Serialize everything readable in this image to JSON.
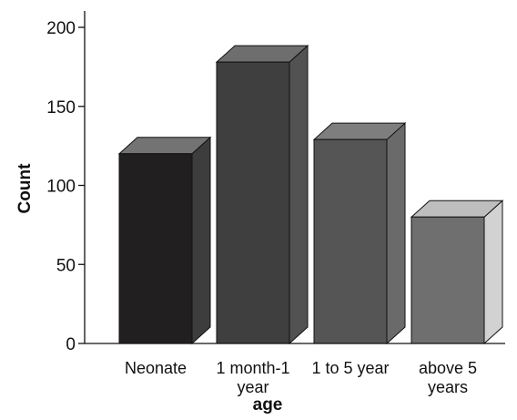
{
  "chart_data": {
    "type": "bar",
    "style": "3d",
    "xlabel": "age",
    "ylabel": "Count",
    "ylim": [
      0,
      200
    ],
    "yticks": [
      0,
      50,
      100,
      150,
      200
    ],
    "grid": false,
    "categories": [
      [
        "Neonate"
      ],
      [
        "1 month-1",
        "year"
      ],
      [
        "1 to 5 year"
      ],
      [
        "above 5",
        "years"
      ]
    ],
    "values": [
      120,
      178,
      129,
      80
    ],
    "colors": [
      {
        "front": "#221f20",
        "top": "#737373",
        "side": "#3d3d3d"
      },
      {
        "front": "#3f3f3f",
        "top": "#6e6e6e",
        "side": "#525252"
      },
      {
        "front": "#555555",
        "top": "#7e7e7e",
        "side": "#6a6a6a"
      },
      {
        "front": "#6f6f6f",
        "top": "#bebebe",
        "side": "#d2d2d2"
      }
    ]
  }
}
